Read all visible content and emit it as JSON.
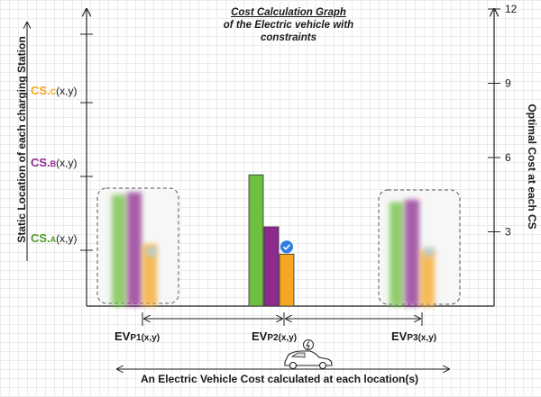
{
  "title": {
    "line1": "Cost Calculation Graph",
    "line2": "of the Electric vehicle with",
    "line3": "constraints"
  },
  "left_axis_label": "Static Location of each charging Station",
  "right_axis_label": "Optimal Cost at each CS",
  "x_axis_label": "An Electric Vehicle Cost calculated  at each location(s)",
  "charging_stations": [
    {
      "prefix": "CS.",
      "letter": "C",
      "coord": "(x,y)",
      "color": "#f5a623"
    },
    {
      "prefix": "CS.",
      "letter": "B",
      "coord": "(x,y)",
      "color": "#8e2a8e"
    },
    {
      "prefix": "CS.",
      "letter": "A",
      "coord": "(x,y)",
      "color": "#6fbf40"
    }
  ],
  "ev_positions": [
    {
      "main": "EV",
      "sub": "P1(x,y)"
    },
    {
      "main": "EV",
      "sub": "P2(x,y)"
    },
    {
      "main": "EV",
      "sub": "P3(x,y)"
    }
  ],
  "chart_data": {
    "type": "bar",
    "categories": [
      "EVP1(x,y)",
      "EVP2(x,y)",
      "EVP3(x,y)"
    ],
    "series": [
      {
        "values": [
          4.5,
          5.3,
          4.2
        ],
        "color": "#6fbf40"
      },
      {
        "values": [
          4.6,
          3.2,
          4.3
        ],
        "color": "#8e2a8e"
      },
      {
        "values": [
          2.5,
          2.1,
          2.3
        ],
        "color": "#f5a623"
      }
    ],
    "highlighted": {
      "category": 1,
      "series": 2
    },
    "blurred_categories": [
      0,
      2
    ],
    "right_axis": {
      "ticks": [
        3,
        6,
        9,
        12
      ],
      "ylim": [
        0,
        13
      ]
    },
    "colors": {
      "A": "#6fbf40",
      "B": "#8e2a8e",
      "C": "#f5a623",
      "check": "#2f7fe0"
    }
  }
}
